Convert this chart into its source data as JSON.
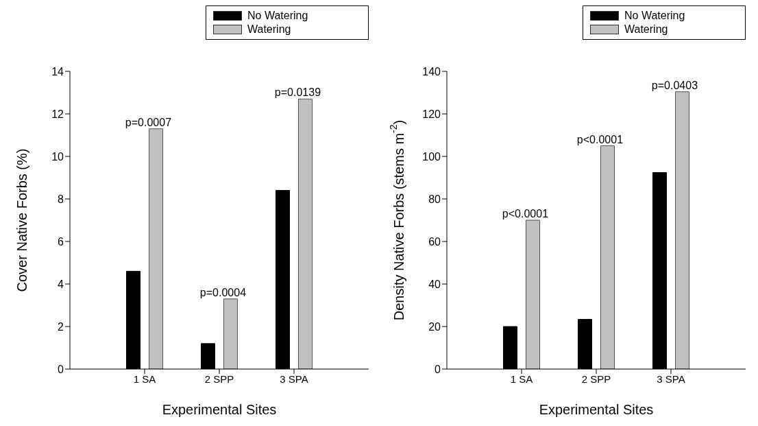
{
  "chart_data": [
    {
      "type": "bar",
      "categories": [
        "1 SA",
        "2 SPP",
        "3 SPA"
      ],
      "xlabel": "Experimental Sites",
      "ylabel": "Cover Native Forbs (%)",
      "ylim": [
        0,
        14
      ],
      "yticks": [
        0,
        2,
        4,
        6,
        8,
        10,
        12,
        14
      ],
      "legend": "top right",
      "grid": false,
      "series": [
        {
          "name": "No Watering",
          "color": "#000000",
          "values": [
            4.6,
            1.2,
            8.4
          ]
        },
        {
          "name": "Watering",
          "color": "#c0c0c0",
          "values": [
            11.3,
            3.3,
            12.7
          ]
        }
      ],
      "annotations": [
        "p=0.0007",
        "p=0.0004",
        "p=0.0139"
      ]
    },
    {
      "type": "bar",
      "categories": [
        "1 SA",
        "2 SPP",
        "3 SPA"
      ],
      "xlabel": "Experimental Sites",
      "ylabel": "Density Native Forbs (stems m$^{-2}$)",
      "ylim": [
        0,
        140
      ],
      "yticks": [
        0,
        20,
        40,
        60,
        80,
        100,
        120,
        140
      ],
      "legend": "top right",
      "grid": false,
      "series": [
        {
          "name": "No Watering",
          "color": "#000000",
          "values": [
            20,
            23.4,
            92.4
          ]
        },
        {
          "name": "Watering",
          "color": "#c0c0c0",
          "values": [
            70,
            105,
            130.4
          ]
        }
      ],
      "annotations": [
        "p<0.0001",
        "p<0.0001",
        "p=0.0403"
      ]
    }
  ]
}
